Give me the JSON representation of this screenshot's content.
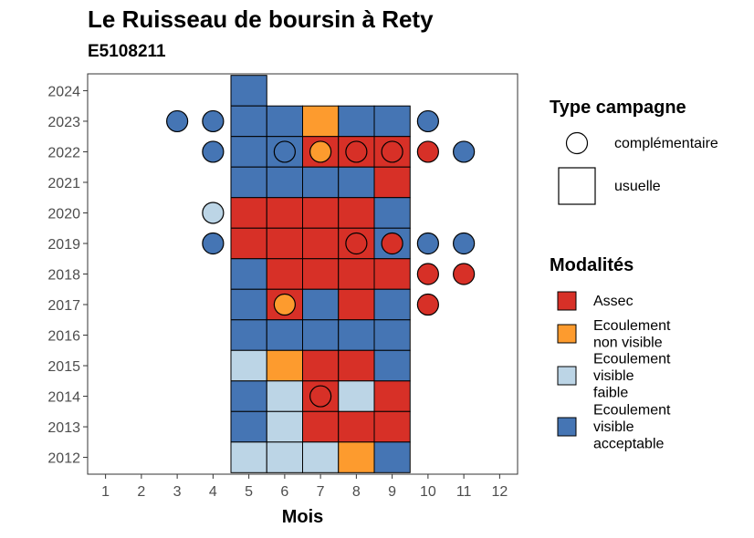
{
  "chart_data": {
    "type": "heatmap",
    "title": "Le Ruisseau de boursin à Rety",
    "subtitle": "E5108211",
    "xlabel": "Mois",
    "x_ticks": [
      1,
      2,
      3,
      4,
      5,
      6,
      7,
      8,
      9,
      10,
      11,
      12
    ],
    "y_ticks": [
      2012,
      2013,
      2014,
      2015,
      2016,
      2017,
      2018,
      2019,
      2020,
      2021,
      2022,
      2023,
      2024
    ],
    "xlim": [
      0.5,
      12.5
    ],
    "ylim": [
      2011.45,
      2024.55
    ],
    "grid": false,
    "colors": {
      "Assec": "#d73027",
      "Ecoulement non visible": "#fd9b2e",
      "Ecoulement visible faible": "#bcd5e6",
      "Ecoulement visible acceptable": "#4575b4"
    },
    "legend_type": {
      "title": "Type campagne",
      "placement": "right",
      "items": [
        {
          "shape": "circle",
          "label": "complémentaire"
        },
        {
          "shape": "square",
          "label": "usuelle"
        }
      ]
    },
    "legend_modalites": {
      "title": "Modalités",
      "placement": "right",
      "items": [
        {
          "key": "Assec",
          "lines": [
            "Assec"
          ]
        },
        {
          "key": "Ecoulement non visible",
          "lines": [
            "Ecoulement",
            "non visible"
          ]
        },
        {
          "key": "Ecoulement visible faible",
          "lines": [
            "Ecoulement",
            "visible",
            "faible"
          ]
        },
        {
          "key": "Ecoulement visible acceptable",
          "lines": [
            "Ecoulement",
            "visible",
            "acceptable"
          ]
        }
      ]
    },
    "usuelle": [
      {
        "year": 2024,
        "month": 5,
        "modalite": "Ecoulement visible acceptable"
      },
      {
        "year": 2023,
        "month": 5,
        "modalite": "Ecoulement visible acceptable"
      },
      {
        "year": 2023,
        "month": 6,
        "modalite": "Ecoulement visible acceptable"
      },
      {
        "year": 2023,
        "month": 7,
        "modalite": "Ecoulement non visible"
      },
      {
        "year": 2023,
        "month": 8,
        "modalite": "Ecoulement visible acceptable"
      },
      {
        "year": 2023,
        "month": 9,
        "modalite": "Ecoulement visible acceptable"
      },
      {
        "year": 2022,
        "month": 5,
        "modalite": "Ecoulement visible acceptable"
      },
      {
        "year": 2022,
        "month": 6,
        "modalite": "Ecoulement visible acceptable"
      },
      {
        "year": 2022,
        "month": 7,
        "modalite": "Assec"
      },
      {
        "year": 2022,
        "month": 8,
        "modalite": "Assec"
      },
      {
        "year": 2022,
        "month": 9,
        "modalite": "Assec"
      },
      {
        "year": 2021,
        "month": 5,
        "modalite": "Ecoulement visible acceptable"
      },
      {
        "year": 2021,
        "month": 6,
        "modalite": "Ecoulement visible acceptable"
      },
      {
        "year": 2021,
        "month": 7,
        "modalite": "Ecoulement visible acceptable"
      },
      {
        "year": 2021,
        "month": 8,
        "modalite": "Ecoulement visible acceptable"
      },
      {
        "year": 2021,
        "month": 9,
        "modalite": "Assec"
      },
      {
        "year": 2020,
        "month": 5,
        "modalite": "Assec"
      },
      {
        "year": 2020,
        "month": 6,
        "modalite": "Assec"
      },
      {
        "year": 2020,
        "month": 7,
        "modalite": "Assec"
      },
      {
        "year": 2020,
        "month": 8,
        "modalite": "Assec"
      },
      {
        "year": 2020,
        "month": 9,
        "modalite": "Ecoulement visible acceptable"
      },
      {
        "year": 2019,
        "month": 5,
        "modalite": "Assec"
      },
      {
        "year": 2019,
        "month": 6,
        "modalite": "Assec"
      },
      {
        "year": 2019,
        "month": 7,
        "modalite": "Assec"
      },
      {
        "year": 2019,
        "month": 8,
        "modalite": "Assec"
      },
      {
        "year": 2019,
        "month": 9,
        "modalite": "Ecoulement visible acceptable"
      },
      {
        "year": 2018,
        "month": 5,
        "modalite": "Ecoulement visible acceptable"
      },
      {
        "year": 2018,
        "month": 6,
        "modalite": "Assec"
      },
      {
        "year": 2018,
        "month": 7,
        "modalite": "Assec"
      },
      {
        "year": 2018,
        "month": 8,
        "modalite": "Assec"
      },
      {
        "year": 2018,
        "month": 9,
        "modalite": "Assec"
      },
      {
        "year": 2017,
        "month": 5,
        "modalite": "Ecoulement visible acceptable"
      },
      {
        "year": 2017,
        "month": 6,
        "modalite": "Assec"
      },
      {
        "year": 2017,
        "month": 7,
        "modalite": "Ecoulement visible acceptable"
      },
      {
        "year": 2017,
        "month": 8,
        "modalite": "Assec"
      },
      {
        "year": 2017,
        "month": 9,
        "modalite": "Ecoulement visible acceptable"
      },
      {
        "year": 2016,
        "month": 5,
        "modalite": "Ecoulement visible acceptable"
      },
      {
        "year": 2016,
        "month": 6,
        "modalite": "Ecoulement visible acceptable"
      },
      {
        "year": 2016,
        "month": 7,
        "modalite": "Ecoulement visible acceptable"
      },
      {
        "year": 2016,
        "month": 8,
        "modalite": "Ecoulement visible acceptable"
      },
      {
        "year": 2016,
        "month": 9,
        "modalite": "Ecoulement visible acceptable"
      },
      {
        "year": 2015,
        "month": 5,
        "modalite": "Ecoulement visible faible"
      },
      {
        "year": 2015,
        "month": 6,
        "modalite": "Ecoulement non visible"
      },
      {
        "year": 2015,
        "month": 7,
        "modalite": "Assec"
      },
      {
        "year": 2015,
        "month": 8,
        "modalite": "Assec"
      },
      {
        "year": 2015,
        "month": 9,
        "modalite": "Ecoulement visible acceptable"
      },
      {
        "year": 2014,
        "month": 5,
        "modalite": "Ecoulement visible acceptable"
      },
      {
        "year": 2014,
        "month": 6,
        "modalite": "Ecoulement visible faible"
      },
      {
        "year": 2014,
        "month": 7,
        "modalite": "Assec"
      },
      {
        "year": 2014,
        "month": 8,
        "modalite": "Ecoulement visible faible"
      },
      {
        "year": 2014,
        "month": 9,
        "modalite": "Assec"
      },
      {
        "year": 2013,
        "month": 5,
        "modalite": "Ecoulement visible acceptable"
      },
      {
        "year": 2013,
        "month": 6,
        "modalite": "Ecoulement visible faible"
      },
      {
        "year": 2013,
        "month": 7,
        "modalite": "Assec"
      },
      {
        "year": 2013,
        "month": 8,
        "modalite": "Assec"
      },
      {
        "year": 2013,
        "month": 9,
        "modalite": "Assec"
      },
      {
        "year": 2012,
        "month": 5,
        "modalite": "Ecoulement visible faible"
      },
      {
        "year": 2012,
        "month": 6,
        "modalite": "Ecoulement visible faible"
      },
      {
        "year": 2012,
        "month": 7,
        "modalite": "Ecoulement visible faible"
      },
      {
        "year": 2012,
        "month": 8,
        "modalite": "Ecoulement non visible"
      },
      {
        "year": 2012,
        "month": 9,
        "modalite": "Ecoulement visible acceptable"
      }
    ],
    "complementaire": [
      {
        "year": 2023,
        "month": 3,
        "modalite": "Ecoulement visible acceptable"
      },
      {
        "year": 2023,
        "month": 4,
        "modalite": "Ecoulement visible acceptable"
      },
      {
        "year": 2023,
        "month": 10,
        "modalite": "Ecoulement visible acceptable"
      },
      {
        "year": 2022,
        "month": 4,
        "modalite": "Ecoulement visible acceptable"
      },
      {
        "year": 2022,
        "month": 6,
        "modalite": "Ecoulement visible acceptable"
      },
      {
        "year": 2022,
        "month": 7,
        "modalite": "Ecoulement non visible"
      },
      {
        "year": 2022,
        "month": 8,
        "modalite": "Assec"
      },
      {
        "year": 2022,
        "month": 9,
        "modalite": "Assec"
      },
      {
        "year": 2022,
        "month": 10,
        "modalite": "Assec"
      },
      {
        "year": 2022,
        "month": 11,
        "modalite": "Ecoulement visible acceptable"
      },
      {
        "year": 2020,
        "month": 4,
        "modalite": "Ecoulement visible faible"
      },
      {
        "year": 2019,
        "month": 4,
        "modalite": "Ecoulement visible acceptable"
      },
      {
        "year": 2019,
        "month": 8,
        "modalite": "Assec"
      },
      {
        "year": 2019,
        "month": 9,
        "modalite": "Assec"
      },
      {
        "year": 2019,
        "month": 10,
        "modalite": "Ecoulement visible acceptable"
      },
      {
        "year": 2019,
        "month": 11,
        "modalite": "Ecoulement visible acceptable"
      },
      {
        "year": 2018,
        "month": 10,
        "modalite": "Assec"
      },
      {
        "year": 2018,
        "month": 11,
        "modalite": "Assec"
      },
      {
        "year": 2017,
        "month": 6,
        "modalite": "Ecoulement non visible"
      },
      {
        "year": 2017,
        "month": 10,
        "modalite": "Assec"
      },
      {
        "year": 2014,
        "month": 7,
        "modalite": "Assec"
      }
    ]
  }
}
